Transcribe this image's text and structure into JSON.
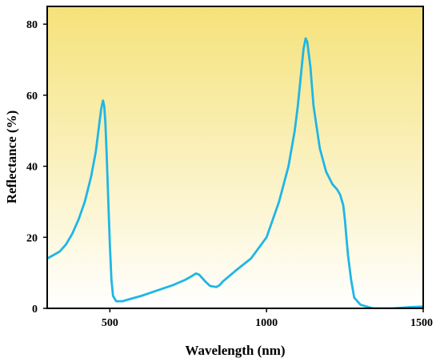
{
  "chart_data": {
    "type": "line",
    "title": "",
    "xlabel": "Wavelength (nm)",
    "ylabel": "Reflectance (%)",
    "xlim": [
      300,
      1500
    ],
    "ylim": [
      0,
      85
    ],
    "x_ticks": [
      500,
      1000,
      1500
    ],
    "x_tick_labels": [
      "500",
      "1000",
      "1500"
    ],
    "y_ticks": [
      0,
      20,
      40,
      60,
      80
    ],
    "y_tick_labels": [
      "0",
      "20",
      "40",
      "60",
      "80"
    ],
    "grid": false,
    "legend": "none",
    "background_gradient": {
      "top": "#f5e27a",
      "bottom": "#ffffff"
    },
    "series": [
      {
        "color": "#1fb6e6",
        "x": [
          300,
          320,
          340,
          360,
          380,
          400,
          420,
          440,
          455,
          465,
          472,
          478,
          482,
          486,
          490,
          495,
          500,
          505,
          510,
          520,
          540,
          560,
          600,
          650,
          700,
          740,
          760,
          775,
          785,
          795,
          805,
          820,
          840,
          850,
          860,
          880,
          900,
          950,
          1000,
          1040,
          1070,
          1090,
          1100,
          1110,
          1118,
          1125,
          1130,
          1140,
          1150,
          1170,
          1190,
          1210,
          1225,
          1235,
          1245,
          1250,
          1255,
          1260,
          1270,
          1280,
          1300,
          1320,
          1340,
          1360,
          1400,
          1450,
          1500
        ],
        "y": [
          14,
          15,
          16,
          18,
          21,
          25,
          30,
          37,
          44,
          51,
          56,
          58.5,
          57,
          52,
          43,
          30,
          18,
          8,
          3.5,
          2,
          2,
          2.5,
          3.5,
          5,
          6.5,
          8,
          9,
          9.8,
          9.5,
          8.5,
          7.5,
          6.3,
          6,
          6.5,
          7.5,
          9,
          10.5,
          14,
          20,
          30,
          40,
          50,
          57,
          66,
          73,
          76,
          75,
          68,
          57,
          45,
          38.5,
          35,
          33.5,
          32,
          29,
          25,
          20,
          15,
          8,
          3,
          1,
          0.5,
          0,
          0,
          0,
          0.3,
          0.5
        ]
      }
    ]
  }
}
